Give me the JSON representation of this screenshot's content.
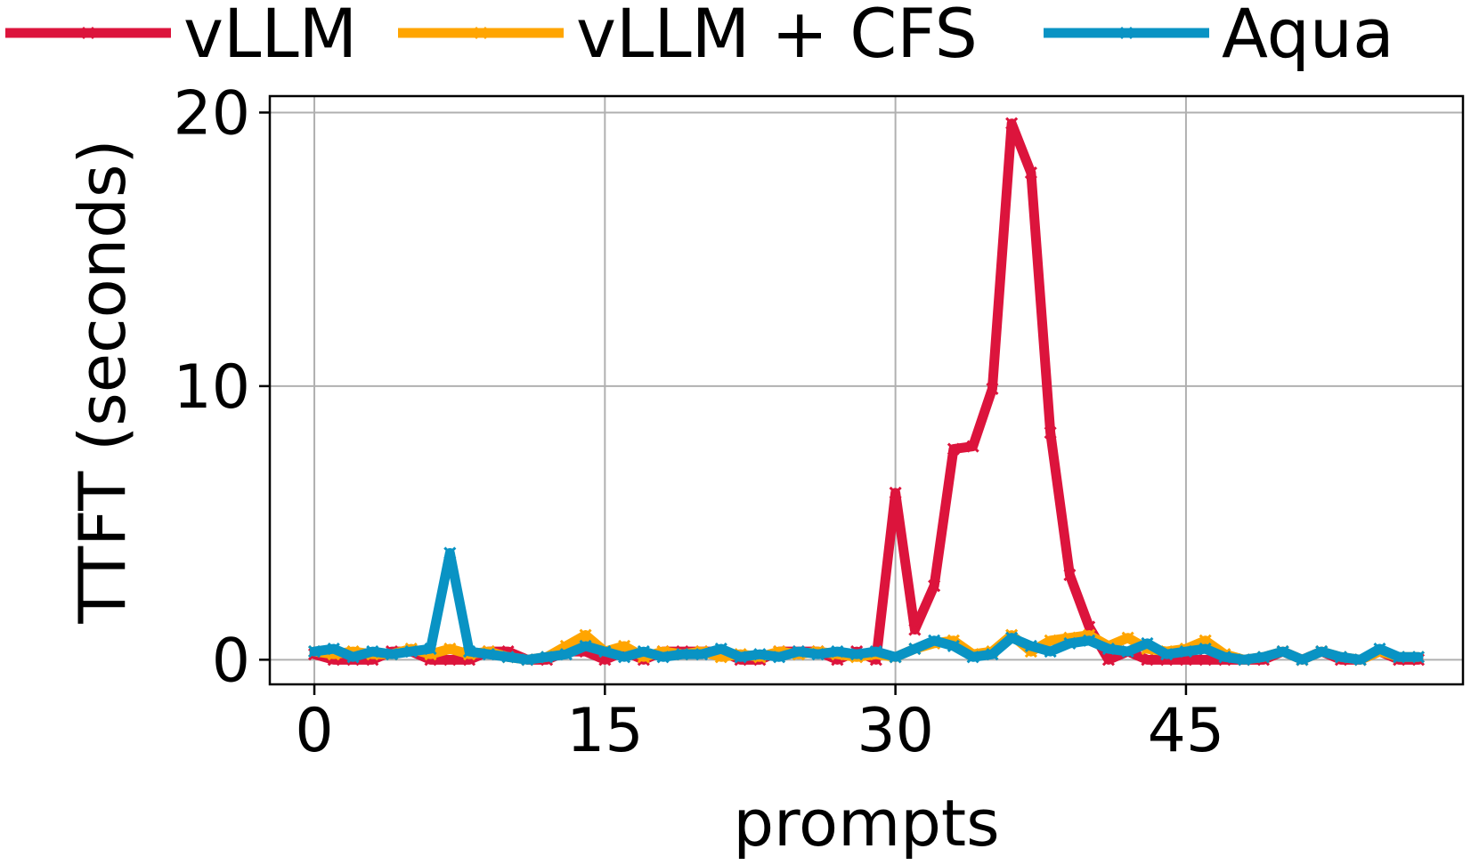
{
  "chart_data": {
    "type": "line",
    "title": "",
    "xlabel": "prompts",
    "ylabel": "TTFT (seconds)",
    "xlim": [
      -2.3,
      59.3
    ],
    "ylim": [
      -0.9,
      20.6
    ],
    "xticks": [
      0,
      15,
      30,
      45
    ],
    "xtick_labels": [
      "0",
      "15",
      "30",
      "45"
    ],
    "yticks": [
      0,
      10,
      20
    ],
    "ytick_labels": [
      "0",
      "10",
      "20"
    ],
    "grid": true,
    "legend_position": "top, above plot",
    "x": [
      0,
      1,
      2,
      3,
      4,
      5,
      6,
      7,
      8,
      9,
      10,
      11,
      12,
      13,
      14,
      15,
      16,
      17,
      18,
      19,
      20,
      21,
      22,
      23,
      24,
      25,
      26,
      27,
      28,
      29,
      30,
      31,
      32,
      33,
      34,
      35,
      36,
      37,
      38,
      39,
      40,
      41,
      42,
      43,
      44,
      45,
      46,
      47,
      48,
      49,
      50,
      51,
      52,
      53,
      54,
      55,
      56,
      57
    ],
    "series": [
      {
        "name": "vLLM",
        "color": "#dc143c",
        "values": [
          0.2,
          0.0,
          0.0,
          0.0,
          0.3,
          0.3,
          0.0,
          0.0,
          0.0,
          0.3,
          0.3,
          0.0,
          0.0,
          0.3,
          0.3,
          0.0,
          0.3,
          0.0,
          0.3,
          0.3,
          0.3,
          0.3,
          0.0,
          0.0,
          0.3,
          0.3,
          0.3,
          0.0,
          0.3,
          0.0,
          6.1,
          1.1,
          2.7,
          7.7,
          7.8,
          9.9,
          19.6,
          17.8,
          8.3,
          3.1,
          1.2,
          0.0,
          0.3,
          0.0,
          0.0,
          0.0,
          0.0,
          0.0,
          0.0,
          0.0,
          0.3,
          0.0,
          0.3,
          0.0,
          0.0,
          0.3,
          0.0,
          0.0
        ]
      },
      {
        "name": "vLLM + CFS",
        "color": "#ffa500",
        "values": [
          0.3,
          0.2,
          0.3,
          0.2,
          0.2,
          0.4,
          0.2,
          0.4,
          0.2,
          0.3,
          0.1,
          0.0,
          0.1,
          0.5,
          0.9,
          0.3,
          0.5,
          0.1,
          0.3,
          0.2,
          0.3,
          0.1,
          0.2,
          0.1,
          0.3,
          0.2,
          0.3,
          0.2,
          0.1,
          0.2,
          0.1,
          0.4,
          0.6,
          0.7,
          0.2,
          0.3,
          0.9,
          0.3,
          0.7,
          0.8,
          0.9,
          0.5,
          0.8,
          0.4,
          0.3,
          0.4,
          0.7,
          0.2,
          0.0,
          0.1,
          0.3,
          0.0,
          0.3,
          0.1,
          0.0,
          0.3,
          0.1,
          0.1
        ]
      },
      {
        "name": "Aqua",
        "color": "#0993c4",
        "values": [
          0.3,
          0.4,
          0.1,
          0.3,
          0.2,
          0.3,
          0.4,
          3.9,
          0.3,
          0.2,
          0.1,
          0.0,
          0.1,
          0.2,
          0.5,
          0.3,
          0.1,
          0.3,
          0.1,
          0.2,
          0.2,
          0.4,
          0.1,
          0.2,
          0.1,
          0.3,
          0.2,
          0.3,
          0.2,
          0.3,
          0.1,
          0.4,
          0.7,
          0.5,
          0.1,
          0.2,
          0.8,
          0.5,
          0.3,
          0.6,
          0.7,
          0.4,
          0.3,
          0.6,
          0.2,
          0.3,
          0.4,
          0.1,
          0.0,
          0.1,
          0.3,
          0.0,
          0.3,
          0.1,
          0.0,
          0.4,
          0.1,
          0.1
        ]
      }
    ]
  }
}
